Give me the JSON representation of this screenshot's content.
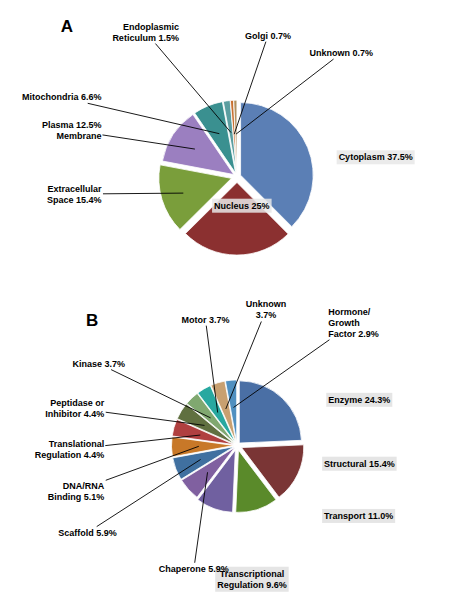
{
  "chart_data": [
    {
      "type": "pie",
      "title": "A",
      "categories": [
        "Cytoplasm 37.5%",
        "Nucleus 25%",
        "Extracellular\nSpace 15.4%",
        "Plasma 12.5%\nMembrane",
        "Mitochondria 6.6%",
        "Endoplasmic\nReticulum 1.5%",
        "Golgi 0.7%",
        "Unknown 0.7%"
      ],
      "values": [
        37.5,
        25.0,
        15.4,
        12.5,
        6.6,
        1.5,
        0.7,
        0.7
      ],
      "colors": [
        "#5B7FB5",
        "#8B3030",
        "#7A9E3B",
        "#9B7FC0",
        "#3A9090",
        "#5B9EA0",
        "#C87030",
        "#B09060"
      ]
    },
    {
      "type": "pie",
      "title": "B",
      "categories": [
        "Enzyme 24.3%",
        "Structural 15.4%",
        "Transport 11.0%",
        "Transcriptional\nRegulation 9.6%",
        "Chaperone 5.9%",
        "Scaffold 5.9%",
        "DNA/RNA\nBinding 5.1%",
        "Translational\nRegulation 4.4%",
        "Peptidase or\nInhibitor 4.4%",
        "Kinase 3.7%",
        "Motor 3.7%",
        "Unknown\n3.7%",
        "Hormone/\nGrowth\nFactor 2.9%"
      ],
      "values": [
        24.3,
        15.4,
        11.0,
        9.6,
        5.9,
        5.9,
        5.1,
        4.4,
        4.4,
        3.7,
        3.7,
        3.7,
        2.9
      ],
      "colors": [
        "#4A6FA5",
        "#7A3535",
        "#5A8A2A",
        "#7060A0",
        "#8060A0",
        "#4070A0",
        "#C87828",
        "#B04040",
        "#607040",
        "#80A870",
        "#28A8A0",
        "#C8A070",
        "#5090C0"
      ]
    }
  ]
}
